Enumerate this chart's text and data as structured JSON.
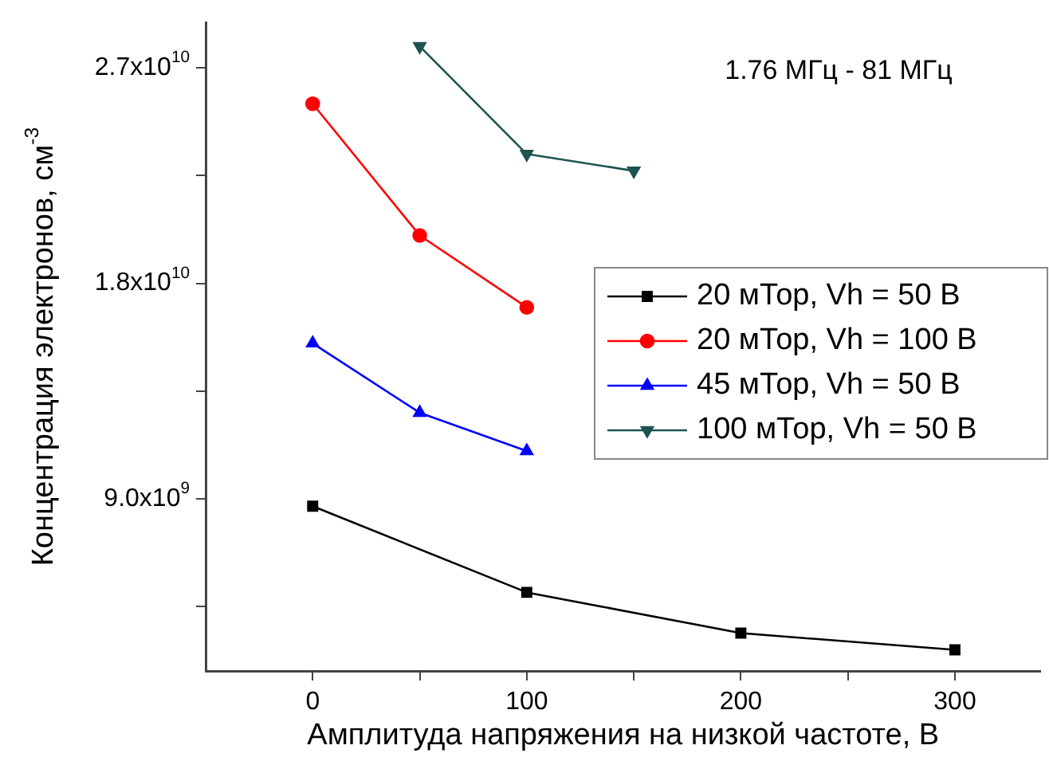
{
  "chart_data": {
    "type": "line",
    "xlabel": "Амплитуда напряжения на низкой частоте, В",
    "ylabel": "Концентрация электронов, см$^{-3}$",
    "annotations": [
      "1.76 МГц - 81 МГц"
    ],
    "xlim": [
      -50,
      340
    ],
    "xticks": [
      0,
      {
        "value": 50,
        "label": null
      },
      100,
      {
        "value": 150,
        "label": null
      },
      200,
      {
        "value": 250,
        "label": null
      },
      300
    ],
    "ylim": [
      1820000000.0,
      28900000000.0
    ],
    "yticks": [
      {
        "value": 4500000000.0,
        "label": null
      },
      {
        "value": 9000000000.0,
        "label": "9.0x10$^{9}$"
      },
      {
        "value": 13500000000.0,
        "label": null
      },
      {
        "value": 18000000000.0,
        "label": "1.8x10$^{10}$"
      },
      {
        "value": 22500000000.0,
        "label": null
      },
      {
        "value": 27000000000.0,
        "label": "2.7x10$^{10}$"
      }
    ],
    "legend": "right",
    "grid": false,
    "series": [
      {
        "name": "20 мТор, Vh = 50 В",
        "color": "#000000",
        "marker": "square",
        "x": [
          0,
          100,
          200,
          300
        ],
        "values": [
          8700000000.0,
          5100000000.0,
          3400000000.0,
          2700000000.0
        ]
      },
      {
        "name": "20 мТор, Vh = 100 В",
        "color": "#ff0000",
        "marker": "circle",
        "x": [
          0,
          50,
          100
        ],
        "values": [
          25500000000.0,
          20000000000.0,
          17000000000.0
        ]
      },
      {
        "name": "45 мТор, Vh = 50 В",
        "color": "#0000ff",
        "marker": "triangle",
        "x": [
          0,
          50,
          100
        ],
        "values": [
          15500000000.0,
          12600000000.0,
          11000000000.0
        ]
      },
      {
        "name": "100 мТор, Vh = 50 В",
        "color": "#1e5350",
        "marker": "triangle-down",
        "x": [
          50,
          100,
          150
        ],
        "values": [
          27900000000.0,
          23400000000.0,
          22700000000.0
        ]
      }
    ]
  }
}
